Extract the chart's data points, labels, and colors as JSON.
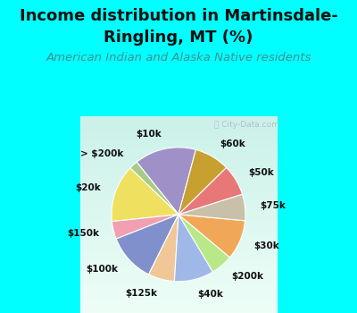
{
  "title_line1": "Income distribution in Martinsdale-",
  "title_line2": "Ringling, MT (%)",
  "subtitle": "American Indian and Alaska Native residents",
  "watermark": "City-Data.com",
  "labels": [
    "$10k",
    "> $200k",
    "$20k",
    "$150k",
    "$100k",
    "$125k",
    "$40k",
    "$200k",
    "$30k",
    "$75k",
    "$50k",
    "$60k"
  ],
  "values": [
    14,
    2,
    13,
    4,
    11,
    6,
    9,
    5,
    9,
    6,
    7,
    8
  ],
  "colors": [
    "#a090c8",
    "#a8cc88",
    "#f0e060",
    "#f0a0b0",
    "#8090cc",
    "#f0c898",
    "#a0b8e8",
    "#b8e888",
    "#f0a858",
    "#c8c0a8",
    "#e87878",
    "#c8a030"
  ],
  "bg_color_cyan": "#00ffff",
  "bg_color_chart_top": "#e0f8f0",
  "bg_color_chart_bot": "#f8fff8",
  "title_color": "#101010",
  "subtitle_color": "#409090",
  "label_fontsize": 7.5,
  "title_fontsize": 13,
  "subtitle_fontsize": 9.5,
  "startangle": 75,
  "label_distance": 1.22,
  "watermark_color": "#a0c0c0"
}
